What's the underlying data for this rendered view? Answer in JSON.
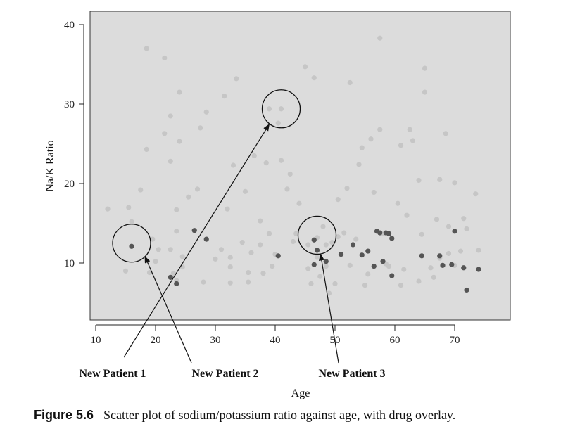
{
  "chart_data": {
    "type": "scatter",
    "xlabel": "Age",
    "ylabel": "Na/K Ratio",
    "xlim": [
      10,
      75
    ],
    "ylim": [
      4,
      41
    ],
    "xticks": [
      10,
      20,
      30,
      40,
      50,
      60,
      70
    ],
    "yticks": [
      10,
      20,
      30,
      40
    ],
    "grid": false,
    "colors": {
      "background": "#dcdcdc",
      "light_point": "#c6c6c6",
      "dark_point": "#555555",
      "annotation": "#111111"
    },
    "series": [
      {
        "color_class": "light",
        "points": [
          [
            12,
            16.8
          ],
          [
            15,
            9
          ],
          [
            15.5,
            17
          ],
          [
            16,
            15.2
          ],
          [
            17.5,
            19.2
          ],
          [
            18.5,
            37
          ],
          [
            18.5,
            24.3
          ],
          [
            19,
            8.8
          ],
          [
            19.5,
            13
          ],
          [
            20,
            10.2
          ],
          [
            20.5,
            11.7
          ],
          [
            21.5,
            35.8
          ],
          [
            21.5,
            26.3
          ],
          [
            22.5,
            28.5
          ],
          [
            22.5,
            22.8
          ],
          [
            22.5,
            11.7
          ],
          [
            23,
            8.7
          ],
          [
            23.5,
            7.8
          ],
          [
            23.5,
            14
          ],
          [
            23.5,
            16.7
          ],
          [
            24,
            25.3
          ],
          [
            24,
            31.5
          ],
          [
            24.5,
            9.5
          ],
          [
            24.5,
            10.8
          ],
          [
            25.5,
            18.3
          ],
          [
            27,
            19.3
          ],
          [
            27.5,
            27
          ],
          [
            28.5,
            29
          ],
          [
            28.5,
            13
          ],
          [
            28,
            7.6
          ],
          [
            30,
            10.5
          ],
          [
            31,
            11.7
          ],
          [
            31.5,
            31
          ],
          [
            32,
            16.8
          ],
          [
            32.5,
            10.7
          ],
          [
            32.5,
            9.5
          ],
          [
            32.5,
            7.5
          ],
          [
            33,
            22.3
          ],
          [
            33.5,
            33.2
          ],
          [
            34.5,
            12.6
          ],
          [
            35,
            19
          ],
          [
            35.5,
            8.8
          ],
          [
            35.5,
            7.6
          ],
          [
            36,
            11.3
          ],
          [
            36.5,
            23.5
          ],
          [
            37.5,
            15.3
          ],
          [
            37.5,
            12.3
          ],
          [
            38,
            8.7
          ],
          [
            38.5,
            22.6
          ],
          [
            39,
            29.4
          ],
          [
            39,
            13.7
          ],
          [
            39.5,
            9.6
          ],
          [
            40,
            11.1
          ],
          [
            40.5,
            27.6
          ],
          [
            41,
            29.4
          ],
          [
            41,
            22.9
          ],
          [
            42,
            19.3
          ],
          [
            42.5,
            21.2
          ],
          [
            43,
            12.7
          ],
          [
            43.5,
            13.7
          ],
          [
            44,
            17.5
          ],
          [
            45,
            34.7
          ],
          [
            45.5,
            12.3
          ],
          [
            45.5,
            9.3
          ],
          [
            46,
            7.4
          ],
          [
            46.5,
            33.3
          ],
          [
            47,
            13.2
          ],
          [
            47,
            10.7
          ],
          [
            47.5,
            8.3
          ],
          [
            48,
            14.6
          ],
          [
            48.5,
            12.3
          ],
          [
            48.5,
            9.6
          ],
          [
            49,
            6.2
          ],
          [
            49.5,
            12.6
          ],
          [
            50,
            7.4
          ],
          [
            50.5,
            18
          ],
          [
            51.5,
            13.8
          ],
          [
            52,
            19.4
          ],
          [
            52.5,
            32.7
          ],
          [
            52.5,
            9.7
          ],
          [
            53.5,
            13
          ],
          [
            54,
            22.4
          ],
          [
            54.5,
            24.5
          ],
          [
            55,
            7.2
          ],
          [
            55.5,
            8.6
          ],
          [
            56,
            25.6
          ],
          [
            56.5,
            18.9
          ],
          [
            57.5,
            38.3
          ],
          [
            57.5,
            26.8
          ],
          [
            58,
            13.7
          ],
          [
            59,
            9.6
          ],
          [
            60.5,
            17.5
          ],
          [
            61,
            24.8
          ],
          [
            61,
            7.2
          ],
          [
            61.5,
            9.2
          ],
          [
            62,
            16
          ],
          [
            62.5,
            26.8
          ],
          [
            63,
            25.4
          ],
          [
            64,
            20.4
          ],
          [
            64,
            7.7
          ],
          [
            64.5,
            13.6
          ],
          [
            65,
            34.5
          ],
          [
            65,
            31.5
          ],
          [
            66,
            9.4
          ],
          [
            66.5,
            8.2
          ],
          [
            67,
            15.5
          ],
          [
            67.5,
            20.5
          ],
          [
            67.5,
            10.6
          ],
          [
            68.5,
            26.3
          ],
          [
            69,
            14.6
          ],
          [
            69,
            11.2
          ],
          [
            70,
            20.1
          ],
          [
            70,
            9.7
          ],
          [
            71.5,
            15.6
          ],
          [
            72,
            14.3
          ],
          [
            73.5,
            18.7
          ],
          [
            74,
            11.6
          ],
          [
            71,
            11.5
          ],
          [
            58.5,
            9.9
          ],
          [
            50.5,
            13.3
          ]
        ]
      },
      {
        "color_class": "dark",
        "points": [
          [
            16,
            12.1
          ],
          [
            22.5,
            8.2
          ],
          [
            23.5,
            7.4
          ],
          [
            26.5,
            14.1
          ],
          [
            28.5,
            13
          ],
          [
            40.5,
            10.9
          ],
          [
            46.5,
            12.9
          ],
          [
            47,
            11.6
          ],
          [
            46.5,
            9.8
          ],
          [
            48.5,
            10.2
          ],
          [
            51,
            11.1
          ],
          [
            53,
            12.3
          ],
          [
            54.5,
            11
          ],
          [
            55.5,
            11.5
          ],
          [
            56.5,
            9.6
          ],
          [
            57,
            14
          ],
          [
            57.5,
            13.8
          ],
          [
            58,
            10.2
          ],
          [
            58.5,
            13.8
          ],
          [
            59,
            13.7
          ],
          [
            59.5,
            13.1
          ],
          [
            59.5,
            8.4
          ],
          [
            64.5,
            10.9
          ],
          [
            67.5,
            10.9
          ],
          [
            68,
            9.7
          ],
          [
            69.5,
            9.8
          ],
          [
            70,
            14
          ],
          [
            71.5,
            9.4
          ],
          [
            72,
            6.6
          ],
          [
            74,
            9.2
          ]
        ]
      }
    ],
    "annotations": [
      {
        "label": "New Patient 1",
        "target": [
          16,
          12.5
        ]
      },
      {
        "label": "New Patient 2",
        "target": [
          41,
          29.4
        ]
      },
      {
        "label": "New Patient 3",
        "target": [
          47,
          13.5
        ]
      }
    ]
  },
  "caption": {
    "figure_number": "Figure 5.6",
    "text": "Scatter plot of sodium/potassium ratio against age, with drug overlay."
  }
}
